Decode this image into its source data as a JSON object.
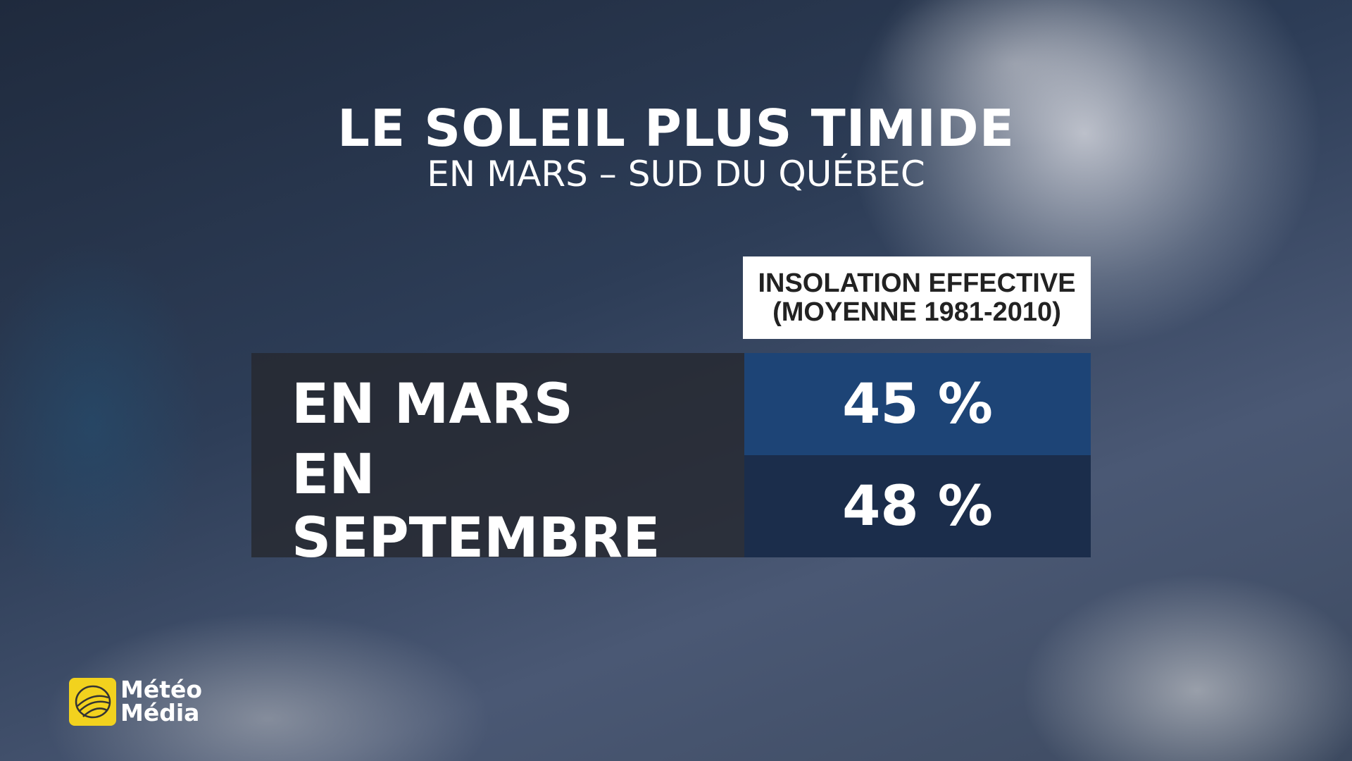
{
  "header": {
    "title": "LE SOLEIL PLUS TIMIDE",
    "subtitle": "EN MARS – SUD DU QUÉBEC"
  },
  "table": {
    "column_header": [
      "INSOLATION EFFECTIVE",
      "(MOYENNE 1981-2010)"
    ],
    "rows": [
      [
        "EN MARS",
        "45 %"
      ],
      [
        "EN SEPTEMBRE",
        "48 %"
      ]
    ]
  },
  "logo": {
    "lines": [
      "Météo",
      "Média"
    ]
  }
}
